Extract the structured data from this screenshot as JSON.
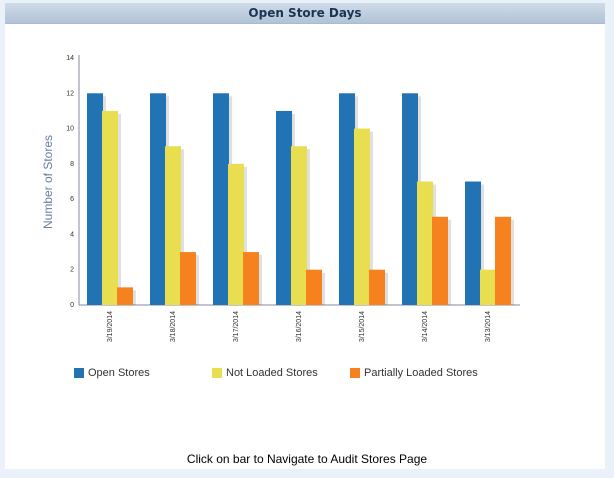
{
  "header": {
    "title": "Open Store Days"
  },
  "chart_data": {
    "type": "bar",
    "title": "",
    "xlabel": "",
    "ylabel": "Number of Stores",
    "ylim": [
      0,
      14
    ],
    "yticks": [
      "0",
      "2",
      "4",
      "6",
      "8",
      "10",
      "12",
      "14"
    ],
    "categories": [
      "3/19/2014",
      "3/18/2014",
      "3/17/2014",
      "3/16/2014",
      "3/15/2014",
      "3/14/2014",
      "3/13/2014"
    ],
    "series": [
      {
        "name": "Open Stores",
        "color": "#2173b4",
        "values": [
          12,
          12,
          12,
          11,
          12,
          12,
          7
        ]
      },
      {
        "name": "Not Loaded Stores",
        "color": "#e8de4f",
        "values": [
          11,
          9,
          8,
          9,
          10,
          7,
          2
        ]
      },
      {
        "name": "Partially Loaded Stores",
        "color": "#f5821f",
        "values": [
          1,
          3,
          3,
          2,
          2,
          5,
          5
        ]
      }
    ],
    "legend": "bottom",
    "grid": false
  },
  "footer": {
    "text": "Click on bar to Navigate to Audit Stores Page"
  }
}
